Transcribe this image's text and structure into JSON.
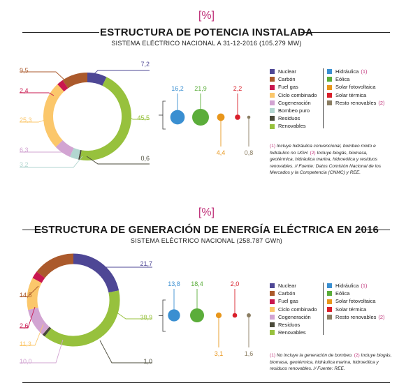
{
  "colors": {
    "nuclear": "#4e4795",
    "carbon": "#ab5a2c",
    "fuel": "#c9174f",
    "ciclo": "#fbc76b",
    "cogen": "#d2a4d2",
    "bombeo": "#b2d6d0",
    "residuos": "#4a4a3a",
    "renov": "#97c13d",
    "hidraulica": "#3a8fd1",
    "eolica": "#5bad3a",
    "solarfv": "#e8961b",
    "solarterm": "#d91f2a",
    "resto": "#8a7d62",
    "accent": "#c0337a"
  },
  "charts": [
    {
      "percent_symbol": "%",
      "title": "ESTRUCTURA DE POTENCIA INSTALADA",
      "subtitle": "SISTEMA ELÉCTRICO NACIONAL A 31-12-2016 (105.279 MW)",
      "note_parts": [
        {
          "text": "(1)",
          "tag": true
        },
        {
          "text": " Incluye hidráulica convencional, bombeo mixto e hidráulico no UGH. ",
          "tag": false
        },
        {
          "text": "(2)",
          "tag": true
        },
        {
          "text": " Incluye biogás, biomasa, geotérmica, hidráulica marina, hidroeólica y residuos renovables. // Fuente: Datos Comisión Nacional de los Mercados y la Competencia (CNMC) y REE.",
          "tag": false
        }
      ]
    },
    {
      "percent_symbol": "%",
      "title": "ESTRUCTURA DE GENERACIÓN DE ENERGÍA ELÉCTRICA EN 2016",
      "subtitle": "SISTEMA ELÉCTRICO NACIONAL (258.787 GWh)",
      "note_parts": [
        {
          "text": "(1)",
          "tag": true
        },
        {
          "text": " No incluye la generación de bombeo. ",
          "tag": false
        },
        {
          "text": "(2)",
          "tag": true
        },
        {
          "text": " Incluye biogás, biomasa, geotérmica, hidráulica marina, hidroeólica y residuos renovables. // Fuente: REE.",
          "tag": false
        }
      ]
    }
  ],
  "legends": [
    {
      "left": [
        {
          "label": "Nuclear",
          "color": "nuclear"
        },
        {
          "label": "Carbón",
          "color": "carbon"
        },
        {
          "label": "Fuel gas",
          "color": "fuel"
        },
        {
          "label": "Ciclo combinado",
          "color": "ciclo"
        },
        {
          "label": "Cogeneración",
          "color": "cogen"
        },
        {
          "label": "Bombeo puro",
          "color": "bombeo"
        },
        {
          "label": "Residuos",
          "color": "residuos"
        },
        {
          "label": "Renovables",
          "color": "renov"
        }
      ],
      "right": [
        {
          "label": "Hidráulica",
          "tag": "(1)",
          "color": "hidraulica"
        },
        {
          "label": "Eólica",
          "tag": "",
          "color": "eolica"
        },
        {
          "label": "Solar fotovoltaica",
          "tag": "",
          "color": "solarfv"
        },
        {
          "label": "Solar térmica",
          "tag": "",
          "color": "solarterm"
        },
        {
          "label": "Resto renovables",
          "tag": "(2)",
          "color": "resto"
        }
      ]
    },
    {
      "left": [
        {
          "label": "Nuclear",
          "color": "nuclear"
        },
        {
          "label": "Carbón",
          "color": "carbon"
        },
        {
          "label": "Fuel gas",
          "color": "fuel"
        },
        {
          "label": "Ciclo combinado",
          "color": "ciclo"
        },
        {
          "label": "Cogeneración",
          "color": "cogen"
        },
        {
          "label": "Residuos",
          "color": "residuos"
        },
        {
          "label": "Renovables",
          "color": "renov"
        }
      ],
      "right": [
        {
          "label": "Hidráulica",
          "tag": "(1)",
          "color": "hidraulica"
        },
        {
          "label": "Eólica",
          "tag": "",
          "color": "eolica"
        },
        {
          "label": "Solar fotovoltaica",
          "tag": "",
          "color": "solarfv"
        },
        {
          "label": "Solar térmica",
          "tag": "",
          "color": "solarterm"
        },
        {
          "label": "Resto renovables",
          "tag": "(2)",
          "color": "resto"
        }
      ]
    }
  ],
  "chart_data": [
    {
      "type": "pie",
      "title": "ESTRUCTURA DE POTENCIA INSTALADA",
      "subtitle": "SISTEMA ELÉCTRICO NACIONAL A 31-12-2016 (105.279 MW)",
      "slices": [
        {
          "name": "Nuclear",
          "value": 7.2,
          "label": "7,2",
          "color": "nuclear"
        },
        {
          "name": "Renovables",
          "value": 45.5,
          "label": "45,5",
          "color": "renov"
        },
        {
          "name": "Residuos",
          "value": 0.6,
          "label": "0,6",
          "color": "residuos"
        },
        {
          "name": "Bombeo puro",
          "value": 3.2,
          "label": "3,2",
          "color": "bombeo"
        },
        {
          "name": "Cogeneración",
          "value": 6.3,
          "label": "6,3",
          "color": "cogen"
        },
        {
          "name": "Ciclo combinado",
          "value": 25.3,
          "label": "25,3",
          "color": "ciclo"
        },
        {
          "name": "Fuel gas",
          "value": 2.4,
          "label": "2,4",
          "color": "fuel"
        },
        {
          "name": "Carbón",
          "value": 9.5,
          "label": "9,5",
          "color": "carbon"
        }
      ],
      "renewables_breakdown": [
        {
          "name": "Hidráulica",
          "value": 16.2,
          "label": "16,2",
          "color": "hidraulica"
        },
        {
          "name": "Eólica",
          "value": 21.9,
          "label": "21,9",
          "color": "eolica"
        },
        {
          "name": "Solar fotovoltaica",
          "value": 4.4,
          "label": "4,4",
          "color": "solarfv"
        },
        {
          "name": "Solar térmica",
          "value": 2.2,
          "label": "2,2",
          "color": "solarterm"
        },
        {
          "name": "Resto renovables",
          "value": 0.8,
          "label": "0,8",
          "color": "resto"
        }
      ]
    },
    {
      "type": "pie",
      "title": "ESTRUCTURA DE GENERACIÓN DE ENERGÍA ELÉCTRICA EN 2016",
      "subtitle": "SISTEMA ELÉCTRICO NACIONAL (258.787 GWh)",
      "slices": [
        {
          "name": "Nuclear",
          "value": 21.7,
          "label": "21,7",
          "color": "nuclear"
        },
        {
          "name": "Renovables",
          "value": 38.9,
          "label": "38,9",
          "color": "renov"
        },
        {
          "name": "Residuos",
          "value": 1.0,
          "label": "1,0",
          "color": "residuos"
        },
        {
          "name": "Cogeneración",
          "value": 10.0,
          "label": "10,0",
          "color": "cogen"
        },
        {
          "name": "Ciclo combinado",
          "value": 11.3,
          "label": "11,3",
          "color": "ciclo"
        },
        {
          "name": "Fuel gas",
          "value": 2.6,
          "label": "2,6",
          "color": "fuel"
        },
        {
          "name": "Carbón",
          "value": 14.5,
          "label": "14,5",
          "color": "carbon"
        }
      ],
      "renewables_breakdown": [
        {
          "name": "Hidráulica",
          "value": 13.8,
          "label": "13,8",
          "color": "hidraulica"
        },
        {
          "name": "Eólica",
          "value": 18.4,
          "label": "18,4",
          "color": "eolica"
        },
        {
          "name": "Solar fotovoltaica",
          "value": 3.1,
          "label": "3,1",
          "color": "solarfv"
        },
        {
          "name": "Solar térmica",
          "value": 2.0,
          "label": "2,0",
          "color": "solarterm"
        },
        {
          "name": "Resto renovables",
          "value": 1.6,
          "label": "1,6",
          "color": "resto"
        }
      ]
    }
  ]
}
